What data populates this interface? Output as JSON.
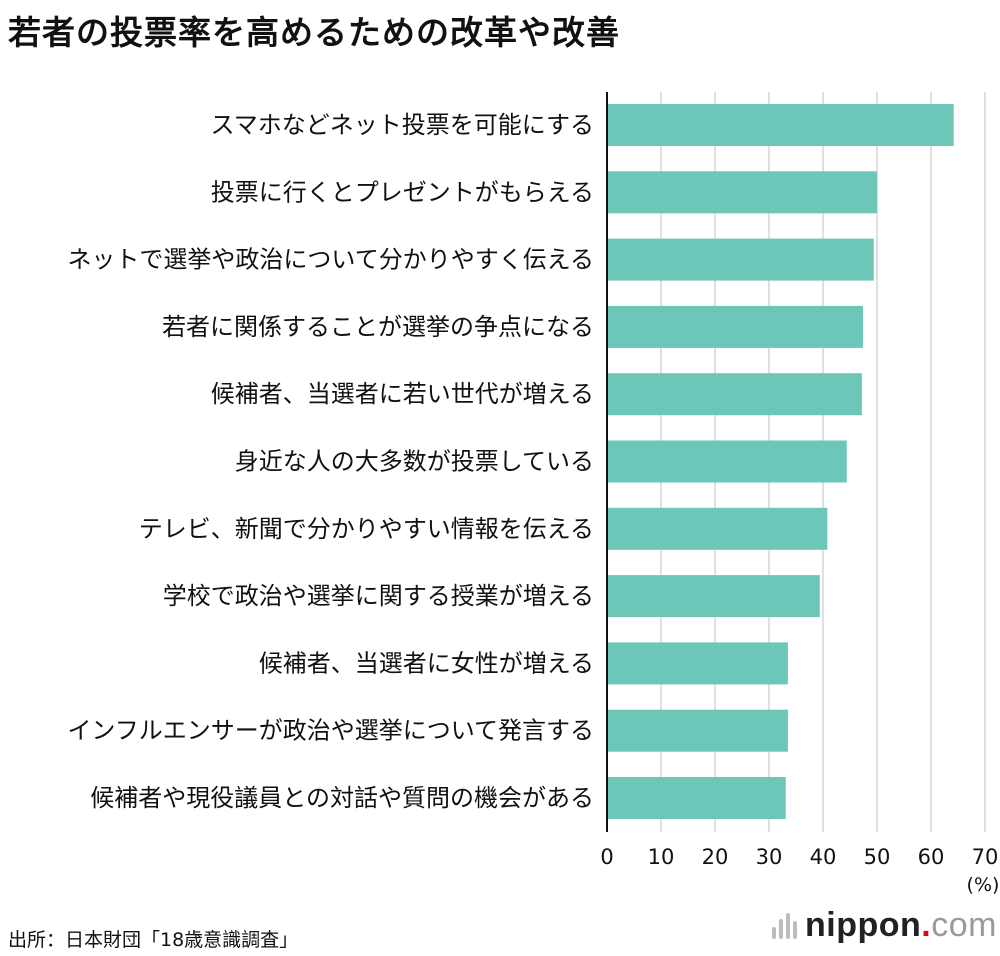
{
  "title": "若者の投票率を高めるための改革や改善",
  "source": "出所：日本財団「18歳意識調査」",
  "brand": {
    "name": "nippon",
    "dot": ".",
    "tld": "com"
  },
  "colors": {
    "bar": "#6cc7b9",
    "grid": "#d6d6d6",
    "axis": "#111111"
  },
  "chart_data": {
    "type": "bar",
    "orientation": "horizontal",
    "categories": [
      "スマホなどネット投票を可能にする",
      "投票に行くとプレゼントがもらえる",
      "ネットで選挙や政治について分かりやすく伝える",
      "若者に関係することが選挙の争点になる",
      "候補者、当選者に若い世代が増える",
      "身近な人の大多数が投票している",
      "テレビ、新聞で分かりやすい情報を伝える",
      "学校で政治や選挙に関する授業が増える",
      "候補者、当選者に女性が増える",
      "インフルエンサーが政治や選挙について発言する",
      "候補者や現役議員との対話や質問の機会がある"
    ],
    "values": [
      64.2,
      50.0,
      49.4,
      47.4,
      47.2,
      44.4,
      40.8,
      39.4,
      33.5,
      33.5,
      33.1
    ],
    "xlim": [
      0,
      70
    ],
    "ticks": [
      "0",
      "10",
      "20",
      "30",
      "40",
      "50",
      "60",
      "70"
    ],
    "unit": "(%)",
    "grid": true
  }
}
